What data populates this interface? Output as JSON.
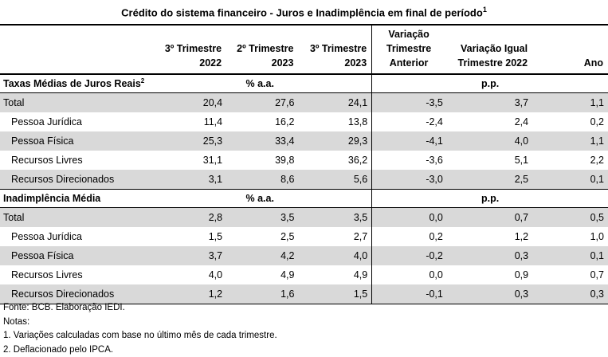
{
  "title": "Crédito do  sistema financeiro - Juros e Inadimplência em final de período",
  "title_note": "1",
  "headers": [
    {
      "line1": "3º Trimestre",
      "line2": "2022"
    },
    {
      "line1": "2º Trimestre",
      "line2": "2023"
    },
    {
      "line1": "3º Trimestre",
      "line2": "2023"
    },
    {
      "line1": "Variação",
      "line2": "Trimestre",
      "line3": "Anterior"
    },
    {
      "line1": "Variação Igual",
      "line2": "Trimestre 2022"
    },
    {
      "line1": "Ano"
    }
  ],
  "sections": [
    {
      "label": "Taxas Médias de Juros Reais",
      "note": "2",
      "unit_left": "% a.a.",
      "unit_right": "p.p.",
      "rows": [
        {
          "label": "Total",
          "values": [
            "20,4",
            "27,6",
            "24,1",
            "-3,5",
            "3,7",
            "1,1"
          ]
        },
        {
          "label": "Pessoa Jurídica",
          "values": [
            "11,4",
            "16,2",
            "13,8",
            "-2,4",
            "2,4",
            "0,2"
          ]
        },
        {
          "label": "Pessoa Física",
          "values": [
            "25,3",
            "33,4",
            "29,3",
            "-4,1",
            "4,0",
            "1,1"
          ]
        },
        {
          "label": "Recursos Livres",
          "values": [
            "31,1",
            "39,8",
            "36,2",
            "-3,6",
            "5,1",
            "2,2"
          ]
        },
        {
          "label": "Recursos Direcionados",
          "values": [
            "3,1",
            "8,6",
            "5,6",
            "-3,0",
            "2,5",
            "0,1"
          ]
        }
      ]
    },
    {
      "label": "Inadimplência Média",
      "note": "",
      "unit_left": "% a.a.",
      "unit_right": "p.p.",
      "rows": [
        {
          "label": "Total",
          "values": [
            "2,8",
            "3,5",
            "3,5",
            "0,0",
            "0,7",
            "0,5"
          ]
        },
        {
          "label": "Pessoa Jurídica",
          "values": [
            "1,5",
            "2,5",
            "2,7",
            "0,2",
            "1,2",
            "1,0"
          ]
        },
        {
          "label": "Pessoa Física",
          "values": [
            "3,7",
            "4,2",
            "4,0",
            "-0,2",
            "0,3",
            "0,1"
          ]
        },
        {
          "label": "Recursos Livres",
          "values": [
            "4,0",
            "4,9",
            "4,9",
            "0,0",
            "0,9",
            "0,7"
          ]
        },
        {
          "label": "Recursos Direcionados",
          "values": [
            "1,2",
            "1,6",
            "1,5",
            "-0,1",
            "0,3",
            "0,3"
          ]
        }
      ]
    }
  ],
  "notes": [
    "Fonte: BCB. Elaboração IEDI.",
    "Notas:",
    "1. Variações calculadas com base no último mês de cada trimestre.",
    "2. Deflacionado pelo IPCA."
  ],
  "colors": {
    "shade": "#d9d9d9",
    "border": "#000000"
  }
}
